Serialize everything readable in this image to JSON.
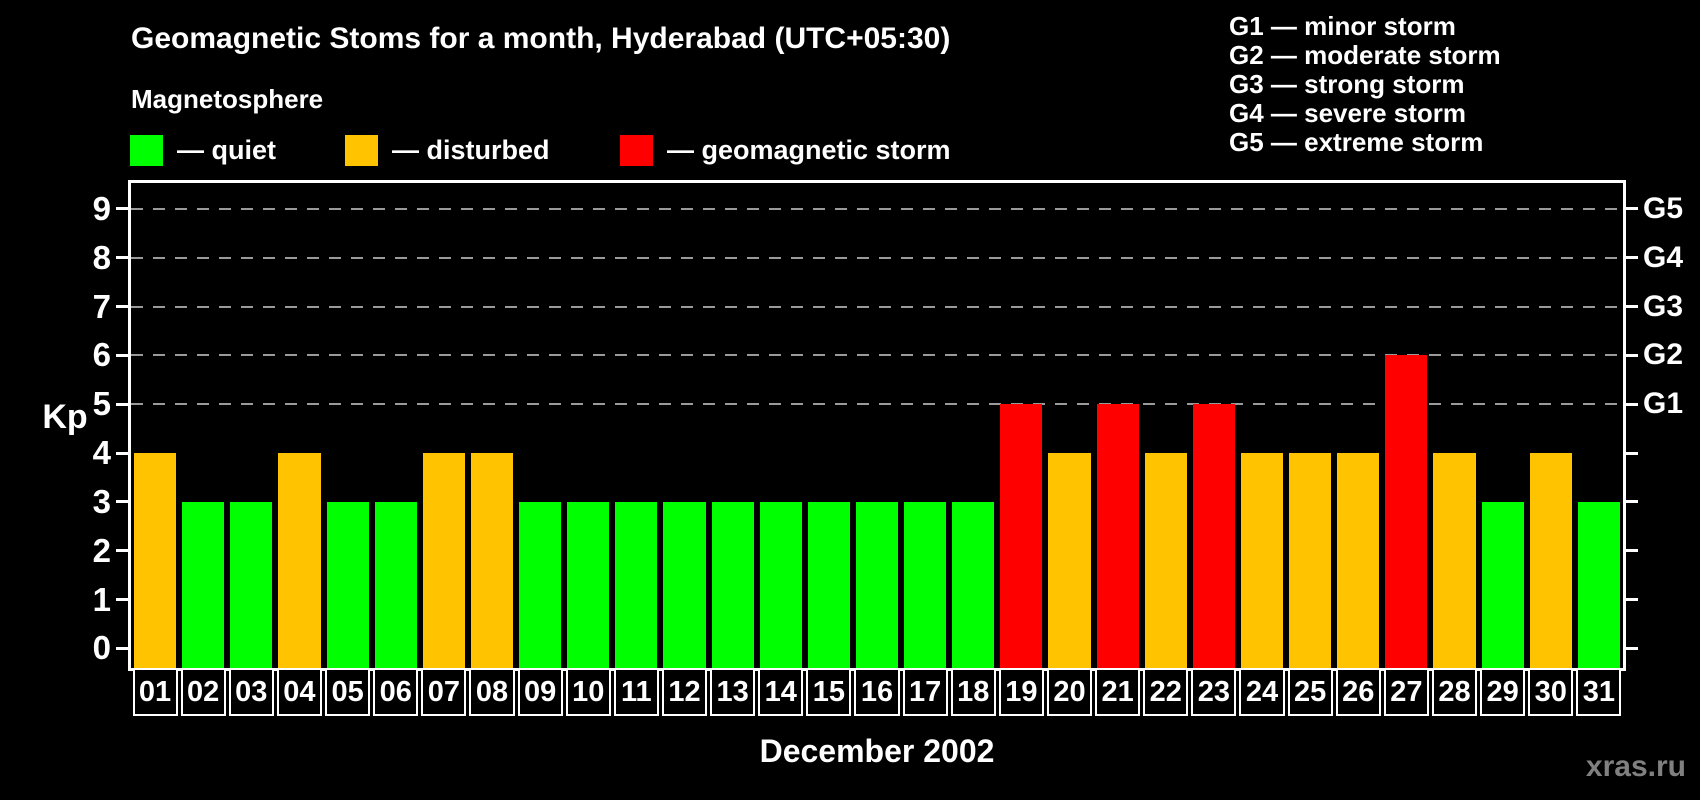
{
  "chart_data": {
    "type": "bar",
    "title": "Geomagnetic Stoms for a month, Hyderabad (UTC+05:30)",
    "legend_title": "Magnetosphere",
    "xlabel": "December 2002",
    "ylabel": "Kp",
    "categories": [
      "01",
      "02",
      "03",
      "04",
      "05",
      "06",
      "07",
      "08",
      "09",
      "10",
      "11",
      "12",
      "13",
      "14",
      "15",
      "16",
      "17",
      "18",
      "19",
      "20",
      "21",
      "22",
      "23",
      "24",
      "25",
      "26",
      "27",
      "28",
      "29",
      "30",
      "31"
    ],
    "values": [
      4,
      3,
      3,
      4,
      3,
      3,
      4,
      4,
      3,
      3,
      3,
      3,
      3,
      3,
      3,
      3,
      3,
      3,
      5,
      4,
      5,
      4,
      5,
      4,
      4,
      4,
      6,
      4,
      3,
      4,
      3
    ],
    "states": [
      "disturbed",
      "quiet",
      "quiet",
      "disturbed",
      "quiet",
      "quiet",
      "disturbed",
      "disturbed",
      "quiet",
      "quiet",
      "quiet",
      "quiet",
      "quiet",
      "quiet",
      "quiet",
      "quiet",
      "quiet",
      "quiet",
      "storm",
      "disturbed",
      "storm",
      "disturbed",
      "storm",
      "disturbed",
      "disturbed",
      "disturbed",
      "storm",
      "disturbed",
      "quiet",
      "disturbed",
      "quiet"
    ],
    "state_colors": {
      "quiet": "#00ff00",
      "disturbed": "#ffc300",
      "storm": "#ff0000"
    },
    "ylim": [
      0,
      9
    ],
    "yticks": [
      0,
      1,
      2,
      3,
      4,
      5,
      6,
      7,
      8,
      9
    ],
    "grid_levels": [
      {
        "kp": 5,
        "label": "G1"
      },
      {
        "kp": 6,
        "label": "G2"
      },
      {
        "kp": 7,
        "label": "G3"
      },
      {
        "kp": 8,
        "label": "G4"
      },
      {
        "kp": 9,
        "label": "G5"
      }
    ],
    "grid_on": true,
    "grid_color": "#9a9a9a",
    "legend_position": "top-left",
    "legend": [
      {
        "state": "quiet",
        "label": "— quiet"
      },
      {
        "state": "disturbed",
        "label": "— disturbed"
      },
      {
        "state": "storm",
        "label": "— geomagnetic storm"
      }
    ]
  },
  "g_scale_legend": [
    "G1 — minor storm",
    "G2 — moderate storm",
    "G3 — strong storm",
    "G4 — severe storm",
    "G5 — extreme storm"
  ],
  "watermark": "xras.ru"
}
